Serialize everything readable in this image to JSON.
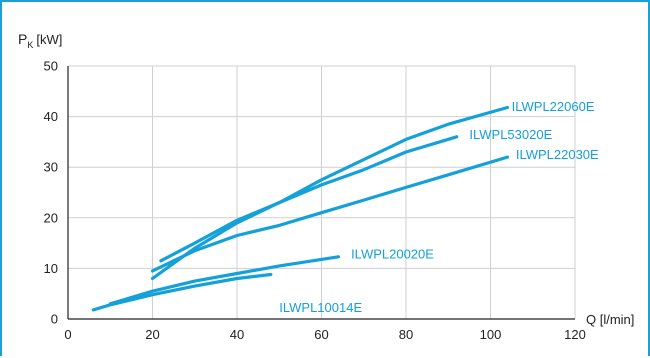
{
  "chart_data": {
    "type": "line",
    "ylabel_main": "P",
    "ylabel_sub": "K",
    "ylabel_unit": "[kW]",
    "xlabel": "Q [l/min]",
    "xlim": [
      0,
      120
    ],
    "ylim": [
      0,
      50
    ],
    "xticks": [
      0,
      20,
      40,
      60,
      80,
      100,
      120
    ],
    "yticks": [
      0,
      10,
      20,
      30,
      40,
      50
    ],
    "grid": true,
    "series_color": "#14a0d8",
    "series": [
      {
        "name": "ILWPL22060E",
        "label_anchor": [
          105,
          42
        ],
        "points": [
          [
            22,
            11.5
          ],
          [
            30,
            15
          ],
          [
            40,
            19.5
          ],
          [
            50,
            23
          ],
          [
            60,
            27.5
          ],
          [
            70,
            31.5
          ],
          [
            80,
            35.5
          ],
          [
            90,
            38.5
          ],
          [
            104,
            41.8
          ]
        ]
      },
      {
        "name": "ILWPL53020E",
        "label_anchor": [
          95,
          36.5
        ],
        "points": [
          [
            20,
            8
          ],
          [
            25,
            11
          ],
          [
            30,
            14
          ],
          [
            40,
            19
          ],
          [
            50,
            23
          ],
          [
            60,
            26.5
          ],
          [
            70,
            29.5
          ],
          [
            80,
            33
          ],
          [
            92,
            36
          ]
        ]
      },
      {
        "name": "ILWPL22030E",
        "label_anchor": [
          106,
          32.5
        ],
        "points": [
          [
            20,
            9.5
          ],
          [
            25,
            11.5
          ],
          [
            30,
            13.5
          ],
          [
            40,
            16.5
          ],
          [
            50,
            18.5
          ],
          [
            60,
            21
          ],
          [
            70,
            23.5
          ],
          [
            80,
            26
          ],
          [
            90,
            28.5
          ],
          [
            104,
            32
          ]
        ]
      },
      {
        "name": "ILWPL20020E",
        "label_anchor": [
          67,
          12.8
        ],
        "points": [
          [
            10,
            3
          ],
          [
            20,
            5.5
          ],
          [
            30,
            7.5
          ],
          [
            40,
            9
          ],
          [
            50,
            10.5
          ],
          [
            64,
            12.3
          ]
        ]
      },
      {
        "name": "ILWPL10014E",
        "label_anchor": [
          50,
          2.3
        ],
        "points": [
          [
            6,
            1.8
          ],
          [
            10,
            2.8
          ],
          [
            20,
            4.8
          ],
          [
            30,
            6.5
          ],
          [
            40,
            8
          ],
          [
            48,
            8.8
          ]
        ]
      }
    ]
  }
}
